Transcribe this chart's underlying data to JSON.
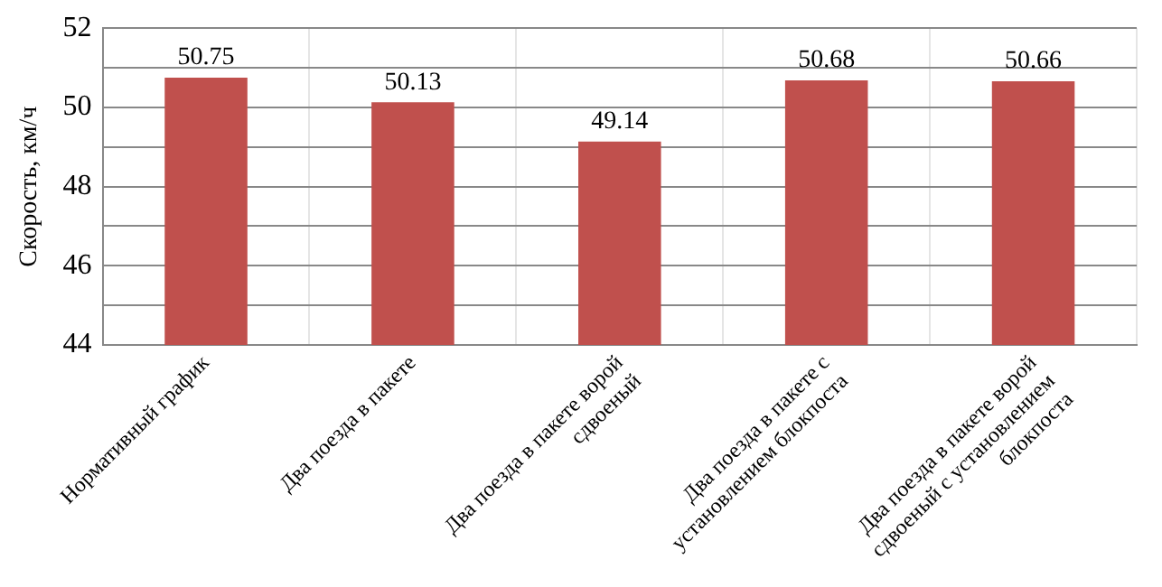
{
  "chart_data": {
    "type": "bar",
    "ylabel": "Скорость, км/ч",
    "categories": [
      "Нормативный график",
      "Два поезда в пакете",
      "Два поезда в пакете ворой сдвоеный",
      "Два поезда в пакете с установлением блокпоста",
      "Два поезда в пакете ворой сдвоеный с установлением блокпоста"
    ],
    "values": [
      50.75,
      50.13,
      49.14,
      50.68,
      50.66
    ],
    "color": "#c0504d",
    "ylim": [
      44,
      52
    ],
    "yticks": [
      44,
      {
        "value": 45,
        "label": null
      },
      46,
      {
        "value": 47,
        "label": null
      },
      48,
      {
        "value": 49,
        "label": null
      },
      50,
      {
        "value": 51,
        "label": null
      },
      52
    ],
    "grid": true,
    "legend": false,
    "data_labels": true
  }
}
